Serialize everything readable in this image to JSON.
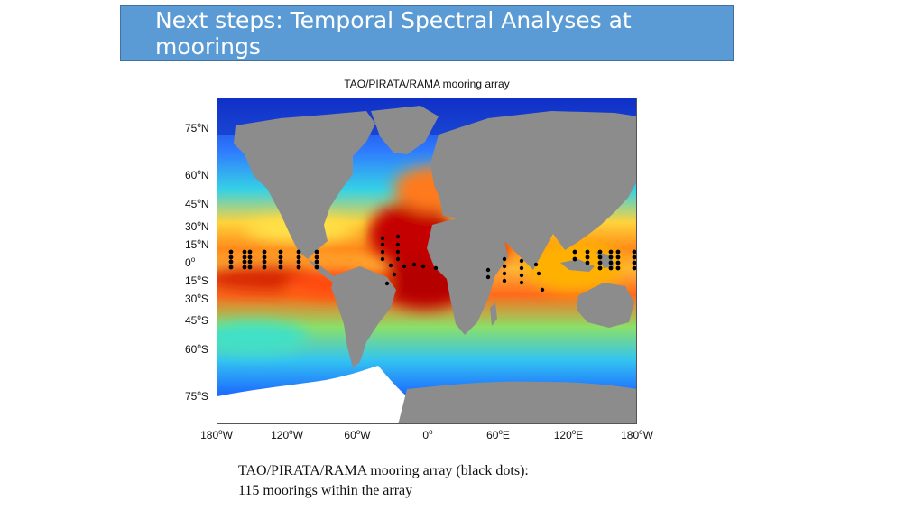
{
  "slide": {
    "title": "Next steps: Temporal Spectral Analyses at moorings"
  },
  "map": {
    "title": "TAO/PIRATA/RAMA mooring array",
    "lat_labels": [
      "75",
      "60",
      "45",
      "30",
      "15",
      "0",
      "15",
      "30",
      "45",
      "60",
      "75"
    ],
    "lat_hemis": [
      "N",
      "N",
      "N",
      "N",
      "N",
      "",
      "S",
      "S",
      "S",
      "S",
      "S"
    ],
    "lon_labels": [
      "180",
      "120",
      "60",
      "0",
      "60",
      "120",
      "180"
    ],
    "lon_hemis": [
      "W",
      "W",
      "W",
      "",
      "E",
      "E",
      "W"
    ],
    "colors": {
      "land": "#8c8c8c",
      "ocean_low": "#1f3bd6",
      "ocean_high": "#b80000",
      "ice": "#ffffff",
      "moorings": "#000000"
    }
  },
  "caption": {
    "line1": "TAO/PIRATA/RAMA mooring array (black dots):",
    "line2": "115 moorings within the array"
  }
}
